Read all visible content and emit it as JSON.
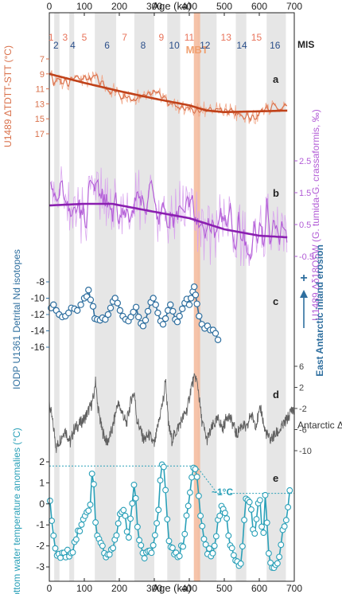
{
  "chart_data": {
    "type": "line",
    "x_axis": {
      "label": "Age (ka)",
      "range": [
        0,
        700
      ],
      "ticks": [
        0,
        100,
        200,
        300,
        400,
        500,
        600,
        700
      ]
    },
    "mis": {
      "label": "MIS",
      "odd_color": "#e8735a",
      "even_color": "#2b4f8a",
      "stages": [
        {
          "n": "1",
          "x": 5
        },
        {
          "n": "2",
          "x": 19
        },
        {
          "n": "3",
          "x": 45
        },
        {
          "n": "4",
          "x": 67
        },
        {
          "n": "5",
          "x": 100
        },
        {
          "n": "6",
          "x": 165
        },
        {
          "n": "7",
          "x": 215
        },
        {
          "n": "8",
          "x": 268
        },
        {
          "n": "9",
          "x": 320
        },
        {
          "n": "10",
          "x": 357
        },
        {
          "n": "11",
          "x": 400
        },
        {
          "n": "12",
          "x": 445
        },
        {
          "n": "13",
          "x": 505
        },
        {
          "n": "14",
          "x": 550
        },
        {
          "n": "15",
          "x": 592
        },
        {
          "n": "16",
          "x": 645
        }
      ],
      "glacial_bands": [
        [
          14,
          29
        ],
        [
          57,
          71
        ],
        [
          130,
          191
        ],
        [
          243,
          300
        ],
        [
          337,
          374
        ],
        [
          424,
          478
        ],
        [
          533,
          563
        ],
        [
          621,
          676
        ]
      ],
      "mbt": {
        "label": "MBT",
        "range": [
          413,
          431
        ],
        "color": "#f5b89a"
      }
    },
    "panels": [
      {
        "id": "a",
        "ylabel": "U1489 ΔTDTT-STT (°C)",
        "yrange": [
          7,
          17
        ],
        "inverted": true,
        "ticks": [
          7,
          9,
          11,
          13,
          15,
          17
        ],
        "color": "#d9704a",
        "smooth_color": "#c0421a",
        "smooth": [
          [
            0,
            9.0
          ],
          [
            100,
            10.2
          ],
          [
            200,
            11.3
          ],
          [
            300,
            12.3
          ],
          [
            400,
            13.2
          ],
          [
            450,
            13.9
          ],
          [
            500,
            14.1
          ],
          [
            600,
            14.0
          ],
          [
            680,
            13.9
          ]
        ]
      },
      {
        "id": "b",
        "ylabel": "U1489 Δδ18OSW (G. tumida-G. crassaformis, ‰)",
        "yrange": [
          -1.0,
          3.0
        ],
        "ticks": [
          2.5,
          1.5,
          0.5,
          -0.5
        ],
        "color": "#b25cd6",
        "smooth_color": "#8a1fb0",
        "smooth": [
          [
            0,
            1.1
          ],
          [
            100,
            1.15
          ],
          [
            180,
            1.15
          ],
          [
            300,
            0.9
          ],
          [
            400,
            0.7
          ],
          [
            500,
            0.35
          ],
          [
            600,
            0.15
          ],
          [
            680,
            0.1
          ]
        ]
      },
      {
        "id": "c",
        "ylabel": "IODP U1361 Detrital Nd isotopes",
        "yrange": [
          -16,
          -8
        ],
        "ticks": [
          -8,
          -10,
          -12,
          -14,
          -16
        ],
        "color": "#2f6f9f",
        "annotation": "East Antarctic inland erosion",
        "points": [
          [
            5,
            -11.2
          ],
          [
            12,
            -10.8
          ],
          [
            20,
            -11.5
          ],
          [
            28,
            -12.0
          ],
          [
            37,
            -12.3
          ],
          [
            46,
            -12.2
          ],
          [
            55,
            -11.8
          ],
          [
            63,
            -11.2
          ],
          [
            72,
            -11.3
          ],
          [
            80,
            -11.5
          ],
          [
            90,
            -10.8
          ],
          [
            100,
            -10.0
          ],
          [
            107,
            -9.8
          ],
          [
            112,
            -9.0
          ],
          [
            118,
            -10.2
          ],
          [
            125,
            -11.0
          ],
          [
            130,
            -12.5
          ],
          [
            137,
            -12.6
          ],
          [
            145,
            -12.7
          ],
          [
            152,
            -12.4
          ],
          [
            160,
            -12.6
          ],
          [
            168,
            -12.0
          ],
          [
            175,
            -11.2
          ],
          [
            182,
            -10.4
          ],
          [
            188,
            -10.0
          ],
          [
            195,
            -10.6
          ],
          [
            202,
            -11.5
          ],
          [
            210,
            -12.2
          ],
          [
            218,
            -12.6
          ],
          [
            226,
            -12.8
          ],
          [
            233,
            -12.3
          ],
          [
            240,
            -11.7
          ],
          [
            248,
            -11.1
          ],
          [
            255,
            -12.3
          ],
          [
            262,
            -13.1
          ],
          [
            268,
            -13.4
          ],
          [
            275,
            -12.7
          ],
          [
            282,
            -11.6
          ],
          [
            290,
            -10.5
          ],
          [
            297,
            -10.0
          ],
          [
            304,
            -10.8
          ],
          [
            310,
            -11.8
          ],
          [
            318,
            -12.8
          ],
          [
            325,
            -13.2
          ],
          [
            332,
            -12.5
          ],
          [
            339,
            -11.5
          ],
          [
            346,
            -10.8
          ],
          [
            353,
            -11.6
          ],
          [
            360,
            -12.6
          ],
          [
            366,
            -12.9
          ],
          [
            372,
            -12.2
          ],
          [
            380,
            -11.3
          ],
          [
            387,
            -10.6
          ],
          [
            393,
            -10.1
          ],
          [
            400,
            -10.8
          ],
          [
            405,
            -10.0
          ],
          [
            410,
            -9.2
          ],
          [
            414,
            -8.6
          ],
          [
            418,
            -9.6
          ],
          [
            422,
            -10.7
          ],
          [
            428,
            -12.2
          ],
          [
            436,
            -13.2
          ],
          [
            444,
            -13.7
          ],
          [
            452,
            -13.4
          ],
          [
            460,
            -13.9
          ],
          [
            468,
            -13.9
          ],
          [
            475,
            -14.3
          ],
          [
            482,
            -15.1
          ]
        ]
      },
      {
        "id": "d",
        "ylabel": "Antarctic ΔT (°C)",
        "yrange": [
          -11,
          7
        ],
        "ticks": [
          6,
          2,
          -2,
          -6,
          -10
        ],
        "color": "#606060",
        "anchors": [
          [
            0,
            -1
          ],
          [
            8,
            -4
          ],
          [
            15,
            -7
          ],
          [
            20,
            -9.5
          ],
          [
            30,
            -8
          ],
          [
            45,
            -6
          ],
          [
            60,
            -8.5
          ],
          [
            70,
            -6
          ],
          [
            85,
            -5
          ],
          [
            100,
            -4
          ],
          [
            115,
            -2
          ],
          [
            122,
            -1
          ],
          [
            129,
            1
          ],
          [
            132,
            4
          ],
          [
            137,
            -1
          ],
          [
            150,
            -6
          ],
          [
            165,
            -8.5
          ],
          [
            180,
            -6
          ],
          [
            195,
            -1
          ],
          [
            210,
            -3
          ],
          [
            220,
            -5
          ],
          [
            235,
            0
          ],
          [
            243,
            1
          ],
          [
            250,
            -4
          ],
          [
            270,
            -8
          ],
          [
            285,
            -7
          ],
          [
            300,
            -9
          ],
          [
            320,
            -2
          ],
          [
            327,
            0
          ],
          [
            332,
            4
          ],
          [
            340,
            -5
          ],
          [
            350,
            -8
          ],
          [
            365,
            -6
          ],
          [
            380,
            -4
          ],
          [
            395,
            -2
          ],
          [
            405,
            2
          ],
          [
            410,
            3
          ],
          [
            418,
            4
          ],
          [
            425,
            2
          ],
          [
            435,
            -4
          ],
          [
            450,
            -8
          ],
          [
            470,
            -5
          ],
          [
            485,
            -4
          ],
          [
            495,
            -6
          ],
          [
            510,
            -3
          ],
          [
            525,
            -5
          ],
          [
            535,
            -7
          ],
          [
            550,
            -5
          ],
          [
            565,
            -6
          ],
          [
            575,
            -3
          ],
          [
            590,
            -5
          ],
          [
            605,
            -2
          ],
          [
            615,
            -6
          ],
          [
            630,
            -8
          ],
          [
            645,
            -7
          ],
          [
            660,
            -6
          ],
          [
            680,
            -4
          ],
          [
            695,
            -2
          ],
          [
            700,
            -3
          ]
        ]
      },
      {
        "id": "e",
        "ylabel": "Bottom water temperature anomalies (°C)",
        "yrange": [
          -3.5,
          2.2
        ],
        "ticks": [
          2,
          1,
          0,
          -1,
          -2,
          -3
        ],
        "color": "#2aa0b8",
        "annotation": "~1°C",
        "ref_high": 1.8,
        "ref_low": 0.5,
        "anchors": [
          [
            0,
            0.2
          ],
          [
            10,
            -1.0
          ],
          [
            20,
            -2.5
          ],
          [
            35,
            -2.5
          ],
          [
            50,
            -2.4
          ],
          [
            65,
            -2.3
          ],
          [
            80,
            -1.5
          ],
          [
            95,
            -1.0
          ],
          [
            110,
            -0.5
          ],
          [
            120,
            0.5
          ],
          [
            123,
            1.8
          ],
          [
            127,
            0.7
          ],
          [
            135,
            -1.5
          ],
          [
            150,
            -2.0
          ],
          [
            165,
            -2.5
          ],
          [
            180,
            -2.3
          ],
          [
            195,
            -1.2
          ],
          [
            205,
            -0.5
          ],
          [
            215,
            -0.2
          ],
          [
            225,
            -1.8
          ],
          [
            235,
            -0.5
          ],
          [
            242,
            1.0
          ],
          [
            245,
            1.4
          ],
          [
            250,
            -1.0
          ],
          [
            265,
            -2.5
          ],
          [
            280,
            -2.5
          ],
          [
            295,
            -2.3
          ],
          [
            310,
            -0.5
          ],
          [
            320,
            1.5
          ],
          [
            325,
            1.9
          ],
          [
            330,
            1.0
          ],
          [
            340,
            -1.5
          ],
          [
            355,
            -2.3
          ],
          [
            370,
            -2.5
          ],
          [
            380,
            -2.0
          ],
          [
            395,
            -0.5
          ],
          [
            405,
            1.0
          ],
          [
            410,
            1.9
          ],
          [
            418,
            1.5
          ],
          [
            425,
            0.8
          ],
          [
            430,
            -0.5
          ],
          [
            440,
            -1.5
          ],
          [
            450,
            -2.2
          ],
          [
            465,
            -2.5
          ],
          [
            480,
            -1.2
          ],
          [
            490,
            -0.2
          ],
          [
            500,
            -0.3
          ],
          [
            510,
            -1.2
          ],
          [
            520,
            -2.0
          ],
          [
            535,
            -2.8
          ],
          [
            545,
            -3.3
          ],
          [
            552,
            -2.0
          ],
          [
            560,
            0.2
          ],
          [
            570,
            0.5
          ],
          [
            578,
            -0.5
          ],
          [
            585,
            -1.5
          ],
          [
            595,
            -0.5
          ],
          [
            600,
            0.6
          ],
          [
            610,
            -2.0
          ],
          [
            618,
            0.9
          ],
          [
            625,
            -2.5
          ],
          [
            640,
            -3.2
          ],
          [
            655,
            -3.0
          ],
          [
            665,
            -1.5
          ],
          [
            675,
            -1.0
          ],
          [
            685,
            0.5
          ]
        ]
      }
    ]
  }
}
